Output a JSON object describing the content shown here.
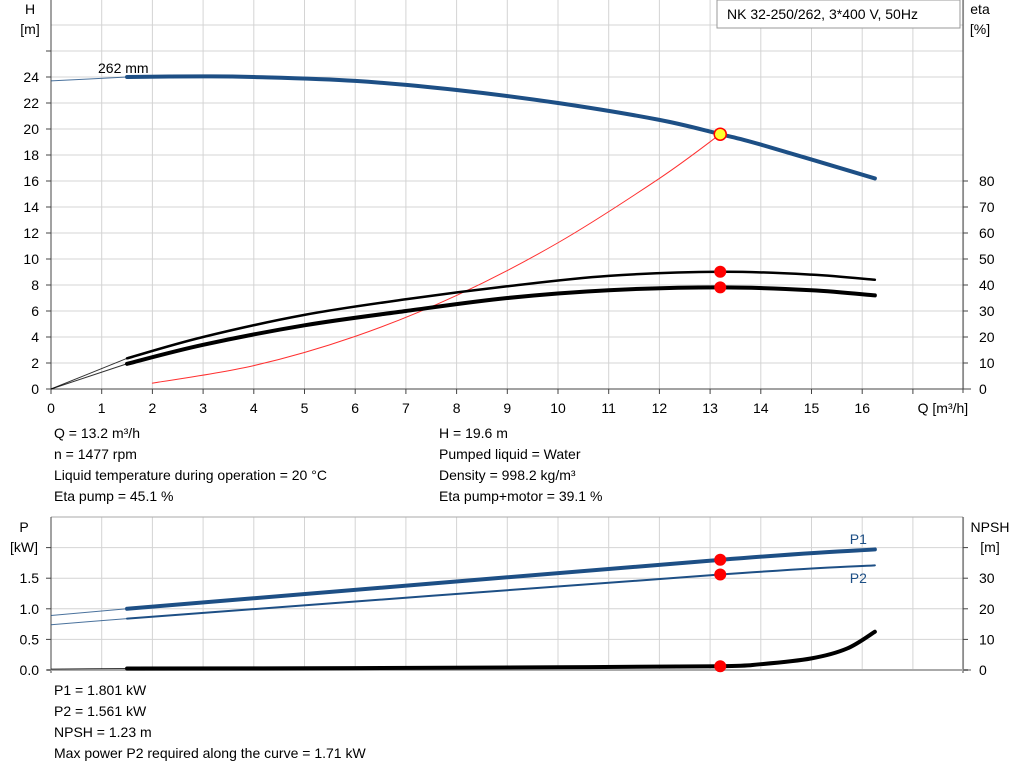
{
  "legend_box": "NK 32-250/262, 3*400 V, 50Hz",
  "chart_data": [
    {
      "type": "line",
      "xlabel": "Q [m³/h]",
      "ylabel_left": [
        "H",
        "[m]"
      ],
      "ylabel_right": [
        "eta",
        "[%]"
      ],
      "xlim": [
        0,
        18
      ],
      "ylim_left": [
        0,
        30
      ],
      "ylim_right": [
        0,
        115
      ],
      "x_ticks": [
        "0",
        "1",
        "2",
        "3",
        "4",
        "5",
        "6",
        "7",
        "8",
        "9",
        "10",
        "11",
        "12",
        "13",
        "14",
        "15",
        "16"
      ],
      "y_ticks_left": [
        "0",
        "2",
        "4",
        "6",
        "8",
        "10",
        "12",
        "14",
        "16",
        "18",
        "20",
        "22",
        "24"
      ],
      "y_ticks_right": [
        "0",
        "10",
        "20",
        "30",
        "40",
        "50",
        "60",
        "70",
        "80"
      ],
      "grid": true,
      "annotation": "262 mm",
      "series": [
        {
          "id": "head",
          "axis": "left",
          "color": "#1d4f85",
          "x": [
            0,
            1.5,
            3,
            4,
            6,
            8,
            10,
            12,
            13.2,
            14,
            16.25
          ],
          "y": [
            23.7,
            24,
            24.05,
            24,
            23.7,
            23,
            22,
            20.7,
            19.6,
            18.8,
            16.2
          ]
        },
        {
          "id": "eta_pump",
          "axis": "right",
          "color": "#000000",
          "x": [
            0,
            1.5,
            3,
            5,
            7,
            9,
            11,
            13.2,
            15,
            16.25
          ],
          "y": [
            0,
            11.8,
            20,
            28.5,
            34.5,
            39.5,
            43.5,
            45.1,
            44,
            42
          ]
        },
        {
          "id": "eta_total",
          "axis": "right",
          "color": "#000000",
          "x": [
            0,
            1.5,
            3,
            5,
            7,
            9,
            11,
            13.2,
            15,
            16.25
          ],
          "y": [
            0,
            9.7,
            17,
            24.5,
            30,
            35,
            38,
            39.1,
            38,
            36
          ]
        },
        {
          "id": "system",
          "axis": "left",
          "color": "#ff3030",
          "x": [
            0,
            2,
            4,
            6,
            8,
            10,
            12,
            13.2
          ],
          "y": [
            0,
            0.45,
            1.8,
            4.05,
            7.2,
            11.25,
            16.2,
            19.6
          ]
        }
      ],
      "operating_point": {
        "q": 13.2,
        "h": 19.6,
        "eta_pump": 45.1,
        "eta_total": 39.1
      }
    },
    {
      "type": "line",
      "xlim": [
        0,
        18
      ],
      "ylabel_left": [
        "P",
        "[kW]"
      ],
      "ylabel_right": [
        "NPSH",
        "[m]"
      ],
      "ylim_left": [
        0,
        2.5
      ],
      "ylim_right": [
        0,
        50
      ],
      "y_ticks_left": [
        "0.0",
        "0.5",
        "1.0",
        "1.5"
      ],
      "y_ticks_right": [
        "0",
        "10",
        "20",
        "30"
      ],
      "grid": true,
      "series": [
        {
          "id": "p1",
          "name": "P1",
          "axis": "left",
          "color": "#1d4f85",
          "x": [
            0,
            1.5,
            13.2,
            16.25
          ],
          "y": [
            0.89,
            1.0,
            1.8,
            1.97
          ]
        },
        {
          "id": "p2",
          "name": "P2",
          "axis": "left",
          "color": "#1d4f85",
          "x": [
            0,
            1.5,
            13.2,
            16.25
          ],
          "y": [
            0.74,
            0.84,
            1.56,
            1.71
          ]
        },
        {
          "id": "npsh",
          "axis": "right",
          "color": "#000000",
          "x": [
            0,
            1.5,
            6,
            10,
            13.2,
            14,
            15,
            15.7,
            16.25
          ],
          "y": [
            0.3,
            0.5,
            0.6,
            0.9,
            1.23,
            1.9,
            3.8,
            7,
            12.5
          ]
        }
      ],
      "operating_point": {
        "q": 13.2,
        "p1": 1.801,
        "p2": 1.561,
        "npsh": 1.23
      }
    }
  ],
  "info_top_left": [
    "Q = 13.2 m³/h",
    "n = 1477 rpm",
    "Liquid temperature during operation = 20 °C",
    "Eta pump = 45.1 %"
  ],
  "info_top_right": [
    "H = 19.6 m",
    "Pumped liquid = Water",
    "Density = 998.2 kg/m³",
    "Eta pump+motor = 39.1 %"
  ],
  "info_bottom": [
    "P1 = 1.801 kW",
    "P2 = 1.561 kW",
    "NPSH = 1.23 m",
    "Max power P2 required along the curve = 1.71 kW"
  ]
}
